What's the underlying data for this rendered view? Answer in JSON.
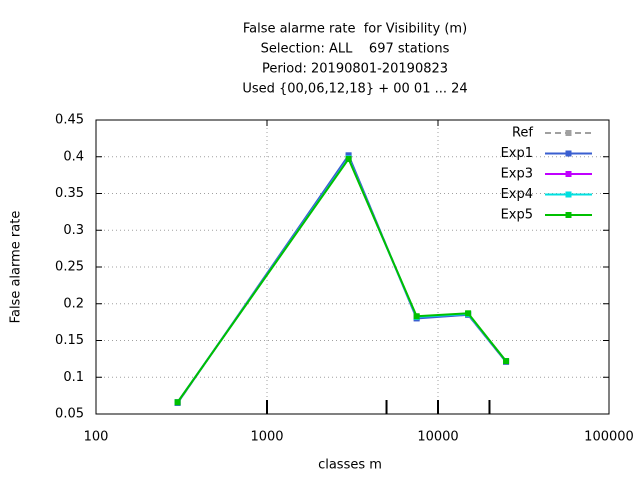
{
  "chart_data": {
    "type": "line",
    "title": [
      "False alarme rate  for Visibility (m)",
      "Selection: ALL    697 stations",
      "Period: 20190801-20190823",
      "Used {00,06,12,18} + 00 01 ... 24"
    ],
    "x_label": "classes m",
    "y_label": "False alarme rate",
    "x": [
      300,
      3000,
      7500,
      15000,
      25000
    ],
    "series": [
      {
        "name": "Ref",
        "color": "#a0a0a0",
        "dashed": true,
        "values": [
          0.065,
          0.401,
          0.181,
          0.185,
          0.121
        ]
      },
      {
        "name": "Exp1",
        "color": "#3a5fd0",
        "values": [
          0.065,
          0.402,
          0.18,
          0.185,
          0.121
        ]
      },
      {
        "name": "Exp3",
        "color": "#c000ff",
        "values": [
          0.066,
          0.398,
          0.182,
          0.186,
          0.122
        ]
      },
      {
        "name": "Exp4",
        "color": "#00e0e0",
        "values": [
          0.066,
          0.398,
          0.182,
          0.186,
          0.122
        ]
      },
      {
        "name": "Exp5",
        "color": "#00c000",
        "values": [
          0.066,
          0.397,
          0.183,
          0.187,
          0.122
        ]
      }
    ],
    "xlim": [
      100,
      100000
    ],
    "xticks": [
      100,
      1000,
      10000,
      100000
    ],
    "xlog": true,
    "ylim": [
      0.05,
      0.45
    ],
    "yticks": [
      0.05,
      0.1,
      0.15,
      0.2,
      0.25,
      0.3,
      0.35,
      0.4,
      0.45
    ],
    "threshold_marks": [
      1000,
      5000,
      10000,
      20000
    ],
    "grid": true,
    "legend": "top-right"
  }
}
